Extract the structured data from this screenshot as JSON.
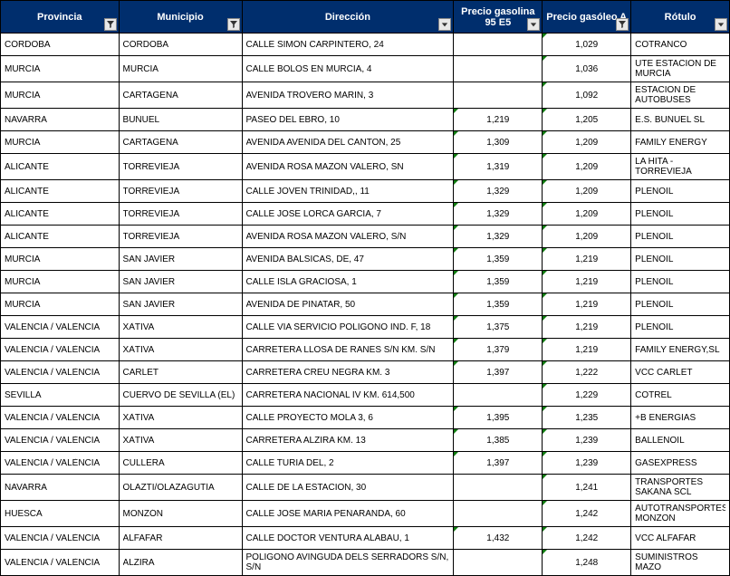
{
  "colors": {
    "header_bg": "#002e6d",
    "header_fg": "#ffffff",
    "grid": "#000000",
    "corner_mark": "#107c10"
  },
  "columns": [
    {
      "key": "provincia",
      "label": "Provincia",
      "align": "left",
      "filter": "funnel"
    },
    {
      "key": "municipio",
      "label": "Municipio",
      "align": "left",
      "filter": "funnel"
    },
    {
      "key": "direccion",
      "label": "Dirección",
      "align": "left",
      "filter": "arrow"
    },
    {
      "key": "p95",
      "label": "Precio gasolina 95 E5",
      "align": "center",
      "filter": "arrow"
    },
    {
      "key": "pga",
      "label": "Precio gasóleo A",
      "align": "center",
      "filter": "funnel"
    },
    {
      "key": "rotulo",
      "label": "Rótulo",
      "align": "left",
      "filter": "arrow"
    }
  ],
  "rows": [
    {
      "provincia": "CÓRDOBA",
      "municipio": "CÓRDOBA",
      "direccion": "CALLE SIMÓN CARPINTERO, 24",
      "p95": "",
      "pga": "1,029",
      "rotulo": "COTRANCO"
    },
    {
      "provincia": "MURCIA",
      "municipio": "MURCIA",
      "direccion": "CALLE BOLOS  EN  MURCIA, 4",
      "p95": "",
      "pga": "1,036",
      "rotulo": "UTE ESTACION DE MURCIA"
    },
    {
      "provincia": "MURCIA",
      "municipio": "CARTAGENA",
      "direccion": "AVENIDA TROVERO MARIN, 3",
      "p95": "",
      "pga": "1,092",
      "rotulo": "ESTACION DE AUTOBUSES"
    },
    {
      "provincia": "NAVARRA",
      "municipio": "BUÑUEL",
      "direccion": "PASEO DEL EBRO, 10",
      "p95": "1,219",
      "pga": "1,205",
      "rotulo": "E.S. BUÑUEL SL"
    },
    {
      "provincia": "MURCIA",
      "municipio": "CARTAGENA",
      "direccion": "AVENIDA AVENIDA DEL CANTON, 25",
      "p95": "1,309",
      "pga": "1,209",
      "rotulo": "FAMILY ENERGY"
    },
    {
      "provincia": "ALICANTE",
      "municipio": "TORREVIEJA",
      "direccion": "AVENIDA ROSA MAZÓN VALERO, SN",
      "p95": "1,319",
      "pga": "1,209",
      "rotulo": "LA HITA - TORREVIEJA"
    },
    {
      "provincia": "ALICANTE",
      "municipio": "TORREVIEJA",
      "direccion": "CALLE JOVEN TRINIDAD,, 11",
      "p95": "1,329",
      "pga": "1,209",
      "rotulo": "PLENOIL"
    },
    {
      "provincia": "ALICANTE",
      "municipio": "TORREVIEJA",
      "direccion": "CALLE JOSE LORCA GARCIA, 7",
      "p95": "1,329",
      "pga": "1,209",
      "rotulo": "PLENOIL"
    },
    {
      "provincia": "ALICANTE",
      "municipio": "TORREVIEJA",
      "direccion": "AVENIDA ROSA MAZÓN VALERO, S/N",
      "p95": "1,329",
      "pga": "1,209",
      "rotulo": "PLENOIL"
    },
    {
      "provincia": "MURCIA",
      "municipio": "SAN JAVIER",
      "direccion": "AVENIDA BALSICAS, DE, 47",
      "p95": "1,359",
      "pga": "1,219",
      "rotulo": "PLENOIL"
    },
    {
      "provincia": "MURCIA",
      "municipio": "SAN JAVIER",
      "direccion": "CALLE ISLA GRACIOSA, 1",
      "p95": "1,359",
      "pga": "1,219",
      "rotulo": "PLENOIL"
    },
    {
      "provincia": "MURCIA",
      "municipio": "SAN JAVIER",
      "direccion": "AVENIDA DE PINATAR, 50",
      "p95": "1,359",
      "pga": "1,219",
      "rotulo": "PLENOIL"
    },
    {
      "provincia": "VALENCIA / VALÈNCIA",
      "municipio": "XÀTIVA",
      "direccion": "CALLE VIA SERVICIO POLIGONO IND. F, 18",
      "p95": "1,375",
      "pga": "1,219",
      "rotulo": "PLENOIL"
    },
    {
      "provincia": "VALENCIA / VALÈNCIA",
      "municipio": "XÀTIVA",
      "direccion": "CARRETERA LLOSA DE RANES S/N KM. S/N",
      "p95": "1,379",
      "pga": "1,219",
      "rotulo": "FAMILY ENERGY,SL"
    },
    {
      "provincia": "VALENCIA / VALÈNCIA",
      "municipio": "CARLET",
      "direccion": "CARRETERA CREU NEGRA KM. 3",
      "p95": "1,397",
      "pga": "1,222",
      "rotulo": "VCC CARLET"
    },
    {
      "provincia": "SEVILLA",
      "municipio": "CUERVO DE SEVILLA (EL)",
      "direccion": "CARRETERA NACIONAL IV KM. 614,500",
      "p95": "",
      "pga": "1,229",
      "rotulo": "COTREL"
    },
    {
      "provincia": "VALENCIA / VALÈNCIA",
      "municipio": "XÀTIVA",
      "direccion": "CALLE PROYECTO MOLA 3, 6",
      "p95": "1,395",
      "pga": "1,235",
      "rotulo": "+B ENERGIAS"
    },
    {
      "provincia": "VALENCIA / VALÈNCIA",
      "municipio": "XÀTIVA",
      "direccion": "CARRETERA ALZIRA KM. 13",
      "p95": "1,385",
      "pga": "1,239",
      "rotulo": "BALLENOIL"
    },
    {
      "provincia": "VALENCIA / VALÈNCIA",
      "municipio": "CULLERA",
      "direccion": "CALLE TURIA DEL, 2",
      "p95": "1,397",
      "pga": "1,239",
      "rotulo": "GASEXPRESS"
    },
    {
      "provincia": "NAVARRA",
      "municipio": "OLAZTI/OLAZAGUTÍA",
      "direccion": "CALLE DE LA ESTACION, 30",
      "p95": "",
      "pga": "1,241",
      "rotulo": "TRANSPORTES SAKANA SCL"
    },
    {
      "provincia": "HUESCA",
      "municipio": "MONZÓN",
      "direccion": "CALLE JOSE MARIA PEÑARANDA, 60",
      "p95": "",
      "pga": "1,242",
      "rotulo": "AUTOTRANSPORTES MONZON"
    },
    {
      "provincia": "VALENCIA / VALÈNCIA",
      "municipio": "ALFAFAR",
      "direccion": "CALLE DOCTOR VENTURA ALABAU, 1",
      "p95": "1,432",
      "pga": "1,242",
      "rotulo": "VCC ALFAFAR"
    },
    {
      "provincia": "VALENCIA / VALÈNCIA",
      "municipio": "ALZIRA",
      "direccion": "POLIGONO AVINGUDA DELS SERRADORS S/N, S/N",
      "p95": "",
      "pga": "1,248",
      "rotulo": "SUMINISTROS MAZO"
    }
  ]
}
